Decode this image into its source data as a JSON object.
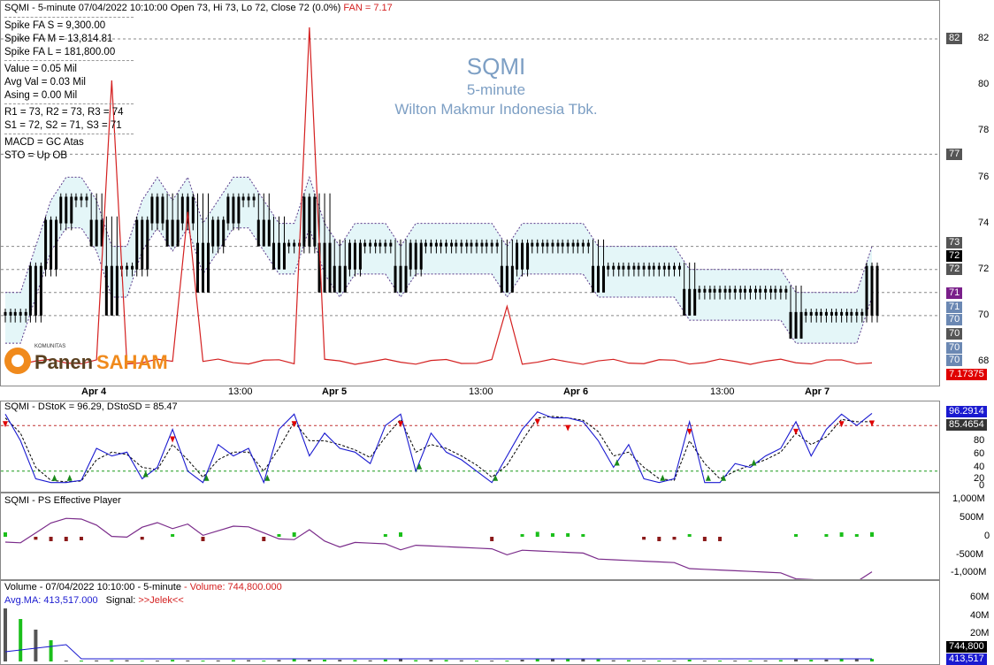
{
  "header": {
    "symbol_line": "SQMI - 5-minute 07/04/2022 10:10:00 Open 73, Hi 73, Lo 72, Close 72 (0.0%)",
    "fan_label": "FAN = 7.17"
  },
  "legend": {
    "spike_s": "Spike FA S =  9,300.00",
    "spike_m": "Spike FA M =  13,814.81",
    "spike_l": "Spike FA L =  181,800.00",
    "value": "Value = 0.05 Mil",
    "avg_val": "Avg Val = 0.03 Mil",
    "asing": "Asing = 0.00 Mil",
    "r_levels": "R1 = 73, R2 = 73, R3 = 74",
    "s_levels": "S1 = 72, S2 = 71, S3 = 71",
    "macd": "MACD =  GC Atas",
    "sto": "STO  =  Up OB"
  },
  "watermark": {
    "ticker": "SQMI",
    "interval": "5-minute",
    "company": "Wilton Makmur Indonesia Tbk."
  },
  "logo": {
    "small": "KOMUNITAS",
    "brand1": "Panen",
    "brand2": "SAHAM"
  },
  "colors": {
    "fan_line": "#d42020",
    "stoch_k": "#1a1ad0",
    "cloud": "#e4f6f8",
    "green": "#1bbf1b",
    "dark_red": "#8b1a1a",
    "purple_line": "#7a2b8a",
    "red_arrow": "#e00000",
    "green_arrow": "#1a8a1a"
  },
  "time_axis": [
    "Apr 4",
    "13:00",
    "Apr 5",
    "13:00",
    "Apr 6",
    "13:00",
    "Apr 7"
  ],
  "price_axis": {
    "ticks": [
      "82",
      "80",
      "78",
      "76",
      "74",
      "72",
      "70",
      "68"
    ],
    "tags": [
      {
        "text": "82",
        "bg": "#555555"
      },
      {
        "text": "77",
        "bg": "#555555"
      },
      {
        "text": "73",
        "bg": "#555555"
      },
      {
        "text": "72",
        "bg": "#000000"
      },
      {
        "text": "72",
        "bg": "#555555"
      },
      {
        "text": "71",
        "bg": "#7a1f8a"
      },
      {
        "text": "71",
        "bg": "#6b88b3"
      },
      {
        "text": "70",
        "bg": "#6b88b3"
      },
      {
        "text": "70",
        "bg": "#555555"
      },
      {
        "text": "70",
        "bg": "#6b88b3"
      },
      {
        "text": "70",
        "bg": "#6b88b3"
      },
      {
        "text": "7.17375",
        "bg": "#e00000"
      }
    ]
  },
  "stoch": {
    "title": "SQMI - DStoK = 96.29, DStoSD = 85.47",
    "k_tag": "96.2914",
    "d_tag": "85.4654",
    "ticks": [
      "80",
      "60",
      "40",
      "20",
      "0"
    ]
  },
  "ps": {
    "title": "SQMI - PS Effective Player",
    "ticks": [
      "1,000M",
      "500M",
      "0",
      "-500M",
      "-1,000M"
    ]
  },
  "volume": {
    "title": "Volume - 07/04/2022 10:10:00 - 5-minute",
    "vol_label": "- Volume: 744,800.000",
    "avg": "Avg.MA: 413,517.000",
    "signal_label": "Signal:",
    "signal_value": ">>Jelek<<",
    "ticks": [
      "60M",
      "40M",
      "20M"
    ],
    "vol_tag": "744,800",
    "avg_tag": "413,517"
  },
  "chart_data": {
    "type": "line",
    "ylim": [
      67.5,
      83
    ],
    "close_levels": [
      70,
      70,
      72,
      74,
      75,
      75,
      74,
      72,
      72,
      74,
      75,
      74,
      75,
      73,
      74,
      75,
      75,
      74,
      73,
      73,
      75,
      73,
      72,
      73,
      73,
      73,
      72,
      73,
      73,
      73,
      73,
      73,
      73,
      72,
      73,
      73,
      73,
      73,
      73,
      72,
      72,
      72,
      72,
      72,
      72,
      71,
      71,
      71,
      71,
      71,
      71,
      71,
      70,
      70,
      70,
      70,
      70,
      72
    ],
    "fan": [
      7.2,
      7.2,
      7.2,
      7.2,
      7.2,
      7.2,
      7.2,
      80.2,
      7.2,
      7.2,
      7.2,
      7.2,
      74.5,
      7.2,
      7.2,
      7.2,
      7.2,
      7.2,
      7.2,
      7.2,
      82.5,
      7.2,
      7.2,
      7.2,
      7.2,
      7.2,
      7.2,
      7.2,
      7.2,
      7.2,
      7.2,
      7.2,
      7.2,
      70.4,
      7.2,
      7.2,
      7.2,
      7.2,
      7.2,
      7.2,
      7.2,
      7.2,
      7.2,
      7.2,
      7.2,
      7.2,
      7.2,
      7.2,
      7.2,
      7.2,
      7.2,
      7.2,
      7.2,
      7.2,
      7.2,
      7.2,
      7.2,
      7.17
    ],
    "stoch_k": [
      95,
      60,
      10,
      5,
      5,
      8,
      50,
      40,
      45,
      10,
      25,
      75,
      20,
      5,
      55,
      40,
      50,
      5,
      75,
      95,
      40,
      70,
      50,
      45,
      30,
      80,
      95,
      20,
      70,
      45,
      35,
      20,
      5,
      40,
      75,
      98,
      90,
      90,
      85,
      60,
      25,
      55,
      10,
      5,
      10,
      85,
      5,
      5,
      30,
      25,
      40,
      50,
      85,
      40,
      75,
      95,
      80,
      96
    ],
    "stoch_d": [
      90,
      70,
      25,
      8,
      6,
      7,
      35,
      45,
      42,
      25,
      22,
      55,
      35,
      12,
      35,
      45,
      45,
      20,
      50,
      85,
      60,
      60,
      55,
      48,
      38,
      65,
      88,
      45,
      55,
      50,
      40,
      28,
      12,
      28,
      60,
      90,
      92,
      90,
      87,
      72,
      40,
      45,
      25,
      10,
      8,
      60,
      30,
      10,
      20,
      28,
      35,
      45,
      70,
      55,
      65,
      88,
      85,
      85
    ]
  }
}
